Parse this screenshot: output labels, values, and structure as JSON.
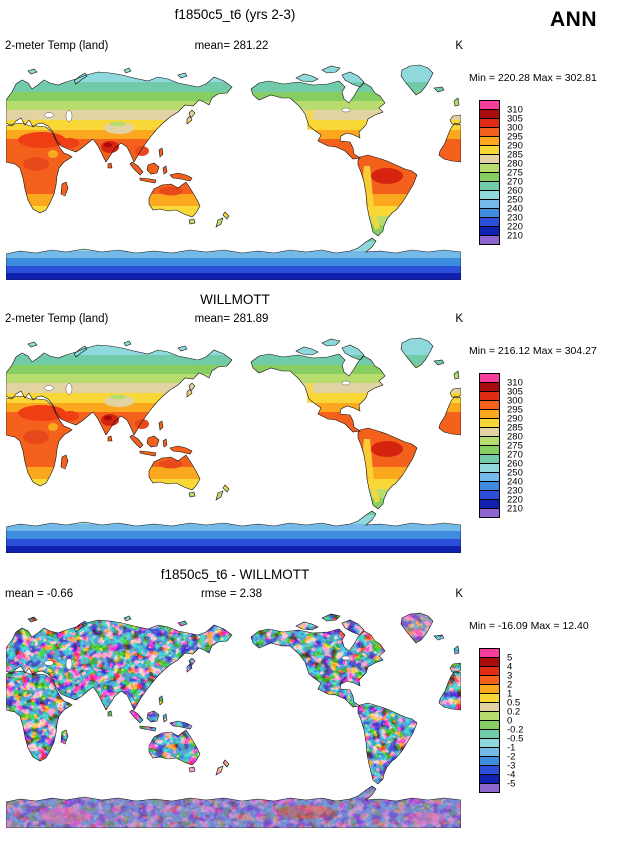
{
  "page": {
    "title": "f1850c5_t6 (yrs 2-3)",
    "season": "ANN"
  },
  "palette": [
    "#F83E9B",
    "#A80C0C",
    "#E02C14",
    "#F4611D",
    "#FCA81F",
    "#F9D737",
    "#E3D3A2",
    "#B8DC6E",
    "#86CE62",
    "#71CBA8",
    "#8FD9DC",
    "#74B9E8",
    "#3E8CDE",
    "#2B4FD8",
    "#1021B0",
    "#8F66CF"
  ],
  "panels": [
    {
      "name": "model",
      "subtitle": "",
      "header": {
        "left": "2-meter Temp (land)",
        "center": "mean= 281.22",
        "right": "K"
      },
      "stats": "Min = 220.28 Max = 302.81",
      "colorbar": {
        "labels": [
          "310",
          "305",
          "300",
          "295",
          "290",
          "285",
          "280",
          "275",
          "270",
          "260",
          "250",
          "240",
          "230",
          "220",
          "210"
        ]
      }
    },
    {
      "name": "willmott",
      "subtitle": "WILLMOTT",
      "header": {
        "left": "2-meter Temp (land)",
        "center": "mean= 281.89",
        "right": "K"
      },
      "stats": "Min = 216.12 Max = 304.27",
      "colorbar": {
        "labels": [
          "310",
          "305",
          "300",
          "295",
          "290",
          "285",
          "280",
          "275",
          "270",
          "260",
          "250",
          "240",
          "230",
          "220",
          "210"
        ]
      }
    },
    {
      "name": "difference",
      "subtitle": "f1850c5_t6 - WILLMOTT",
      "header": {
        "left": "mean = -0.66",
        "center": "rmse =  2.38",
        "right": "K"
      },
      "stats": "Min = -16.09 Max = 12.40",
      "colorbar": {
        "labels": [
          "5",
          "4",
          "3",
          "2",
          "1",
          "0.5",
          "0.2",
          "0",
          "-0.2",
          "-0.5",
          "-1",
          "-2",
          "-3",
          "-4",
          "-5"
        ]
      }
    }
  ],
  "chart_data": [
    {
      "type": "heatmap",
      "title": "f1850c5_t6 (yrs 2-3)",
      "variable": "2-meter Temp (land)",
      "season": "ANN",
      "units": "K",
      "projection": "global lat-lon map",
      "mean": 281.22,
      "min": 220.28,
      "max": 302.81,
      "levels": [
        210,
        220,
        230,
        240,
        250,
        260,
        270,
        275,
        280,
        285,
        290,
        295,
        300,
        305,
        310
      ],
      "legend_position": "right"
    },
    {
      "type": "heatmap",
      "title": "WILLMOTT",
      "variable": "2-meter Temp (land)",
      "season": "ANN",
      "units": "K",
      "projection": "global lat-lon map",
      "mean": 281.89,
      "min": 216.12,
      "max": 304.27,
      "levels": [
        210,
        220,
        230,
        240,
        250,
        260,
        270,
        275,
        280,
        285,
        290,
        295,
        300,
        305,
        310
      ],
      "legend_position": "right"
    },
    {
      "type": "heatmap",
      "title": "f1850c5_t6 - WILLMOTT",
      "variable": "2-meter Temp (land) difference",
      "season": "ANN",
      "units": "K",
      "projection": "global lat-lon map",
      "mean": -0.66,
      "rmse": 2.38,
      "min": -16.09,
      "max": 12.4,
      "levels": [
        -5,
        -4,
        -3,
        -2,
        -1,
        -0.5,
        -0.2,
        0,
        0.2,
        0.5,
        1,
        2,
        3,
        4,
        5
      ],
      "legend_position": "right"
    }
  ]
}
